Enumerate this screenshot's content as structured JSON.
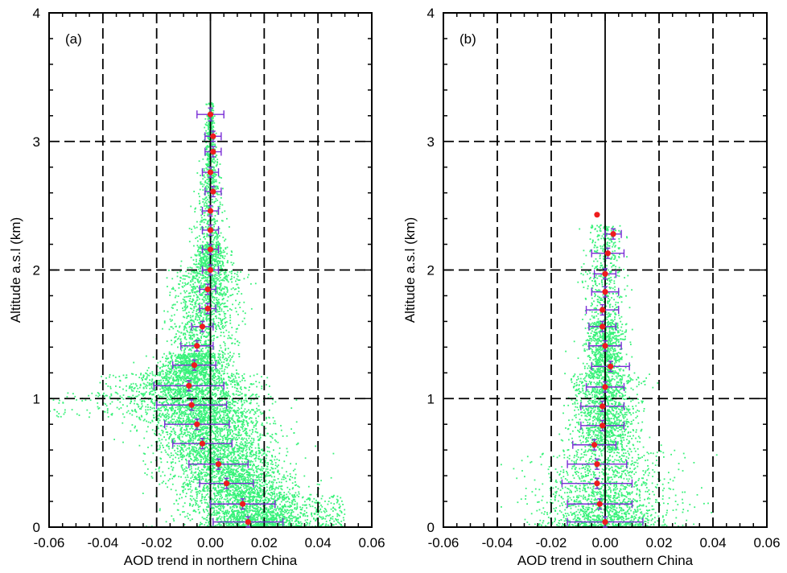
{
  "chart_data": [
    {
      "type": "scatter",
      "panel_label": "(a)",
      "xlabel": "AOD trend in northern China",
      "ylabel": "Altitude a.s.l (km)",
      "xlim": [
        -0.06,
        0.06
      ],
      "ylim": [
        0,
        4
      ],
      "xticks": [
        -0.06,
        -0.04,
        -0.02,
        0.0,
        0.02,
        0.04,
        0.06
      ],
      "xtick_labels": [
        "-0.06",
        "-0.04",
        "-0.02",
        "0.00",
        "0.02",
        "0.04",
        "0.06"
      ],
      "yticks": [
        0,
        1,
        2,
        3,
        4
      ],
      "ytick_labels": [
        "0",
        "1",
        "2",
        "3",
        "4"
      ],
      "grid": true,
      "scatter_color": "#39f27a",
      "mean_color": "#ee1c1c",
      "errorbar_color": "#7a2ed6",
      "mean_profile": [
        {
          "y": 3.21,
          "x": 0.0,
          "xerr": 0.005,
          "yerr": 0.05
        },
        {
          "y": 3.04,
          "x": 0.001,
          "xerr": 0.003,
          "yerr": 0.04
        },
        {
          "y": 2.92,
          "x": 0.001,
          "xerr": 0.003,
          "yerr": 0.04
        },
        {
          "y": 2.76,
          "x": 0.0,
          "xerr": 0.003,
          "yerr": 0.04
        },
        {
          "y": 2.61,
          "x": 0.001,
          "xerr": 0.003,
          "yerr": 0.04
        },
        {
          "y": 2.46,
          "x": 0.0,
          "xerr": 0.003,
          "yerr": 0.04
        },
        {
          "y": 2.31,
          "x": 0.0,
          "xerr": 0.003,
          "yerr": 0.04
        },
        {
          "y": 2.16,
          "x": 0.0,
          "xerr": 0.003,
          "yerr": 0.04
        },
        {
          "y": 2.0,
          "x": 0.0,
          "xerr": 0.003,
          "yerr": 0.04
        },
        {
          "y": 1.85,
          "x": -0.001,
          "xerr": 0.003,
          "yerr": 0.04
        },
        {
          "y": 1.7,
          "x": -0.001,
          "xerr": 0.003,
          "yerr": 0.04
        },
        {
          "y": 1.56,
          "x": -0.003,
          "xerr": 0.004,
          "yerr": 0.04
        },
        {
          "y": 1.41,
          "x": -0.005,
          "xerr": 0.006,
          "yerr": 0.04
        },
        {
          "y": 1.26,
          "x": -0.006,
          "xerr": 0.008,
          "yerr": 0.04
        },
        {
          "y": 1.1,
          "x": -0.008,
          "xerr": 0.013,
          "yerr": 0.04
        },
        {
          "y": 0.95,
          "x": -0.007,
          "xerr": 0.013,
          "yerr": 0.04
        },
        {
          "y": 0.8,
          "x": -0.005,
          "xerr": 0.012,
          "yerr": 0.04
        },
        {
          "y": 0.65,
          "x": -0.003,
          "xerr": 0.011,
          "yerr": 0.04
        },
        {
          "y": 0.49,
          "x": 0.003,
          "xerr": 0.011,
          "yerr": 0.04
        },
        {
          "y": 0.34,
          "x": 0.006,
          "xerr": 0.01,
          "yerr": 0.04
        },
        {
          "y": 0.18,
          "x": 0.012,
          "xerr": 0.012,
          "yerr": 0.04
        },
        {
          "y": 0.04,
          "x": 0.014,
          "xerr": 0.013,
          "yerr": 0.04
        }
      ]
    },
    {
      "type": "scatter",
      "panel_label": "(b)",
      "xlabel": "AOD trend in southern China",
      "ylabel": "Altitude a.s.l (km)",
      "xlim": [
        -0.06,
        0.06
      ],
      "ylim": [
        0,
        4
      ],
      "xticks": [
        -0.06,
        -0.04,
        -0.02,
        0.0,
        0.02,
        0.04,
        0.06
      ],
      "xtick_labels": [
        "-0.06",
        "-0.04",
        "-0.02",
        "0.00",
        "0.02",
        "0.04",
        "0.06"
      ],
      "yticks": [
        0,
        1,
        2,
        3,
        4
      ],
      "ytick_labels": [
        "0",
        "1",
        "2",
        "3",
        "4"
      ],
      "grid": true,
      "scatter_color": "#39f27a",
      "mean_color": "#ee1c1c",
      "errorbar_color": "#7a2ed6",
      "mean_profile": [
        {
          "y": 2.43,
          "x": -0.003,
          "xerr": 0.0,
          "yerr": 0.0
        },
        {
          "y": 2.28,
          "x": 0.003,
          "xerr": 0.003,
          "yerr": 0.04
        },
        {
          "y": 2.13,
          "x": 0.001,
          "xerr": 0.006,
          "yerr": 0.04
        },
        {
          "y": 1.97,
          "x": 0.0,
          "xerr": 0.004,
          "yerr": 0.04
        },
        {
          "y": 1.83,
          "x": 0.0,
          "xerr": 0.005,
          "yerr": 0.04
        },
        {
          "y": 1.69,
          "x": -0.001,
          "xerr": 0.006,
          "yerr": 0.04
        },
        {
          "y": 1.56,
          "x": -0.001,
          "xerr": 0.005,
          "yerr": 0.04
        },
        {
          "y": 1.41,
          "x": 0.0,
          "xerr": 0.006,
          "yerr": 0.04
        },
        {
          "y": 1.25,
          "x": 0.002,
          "xerr": 0.007,
          "yerr": 0.04
        },
        {
          "y": 1.09,
          "x": 0.0,
          "xerr": 0.007,
          "yerr": 0.04
        },
        {
          "y": 0.94,
          "x": -0.001,
          "xerr": 0.008,
          "yerr": 0.04
        },
        {
          "y": 0.79,
          "x": -0.001,
          "xerr": 0.008,
          "yerr": 0.04
        },
        {
          "y": 0.64,
          "x": -0.004,
          "xerr": 0.008,
          "yerr": 0.04
        },
        {
          "y": 0.49,
          "x": -0.003,
          "xerr": 0.011,
          "yerr": 0.04
        },
        {
          "y": 0.34,
          "x": -0.003,
          "xerr": 0.013,
          "yerr": 0.04
        },
        {
          "y": 0.18,
          "x": -0.002,
          "xerr": 0.012,
          "yerr": 0.04
        },
        {
          "y": 0.04,
          "x": 0.0,
          "xerr": 0.014,
          "yerr": 0.04
        }
      ]
    }
  ]
}
